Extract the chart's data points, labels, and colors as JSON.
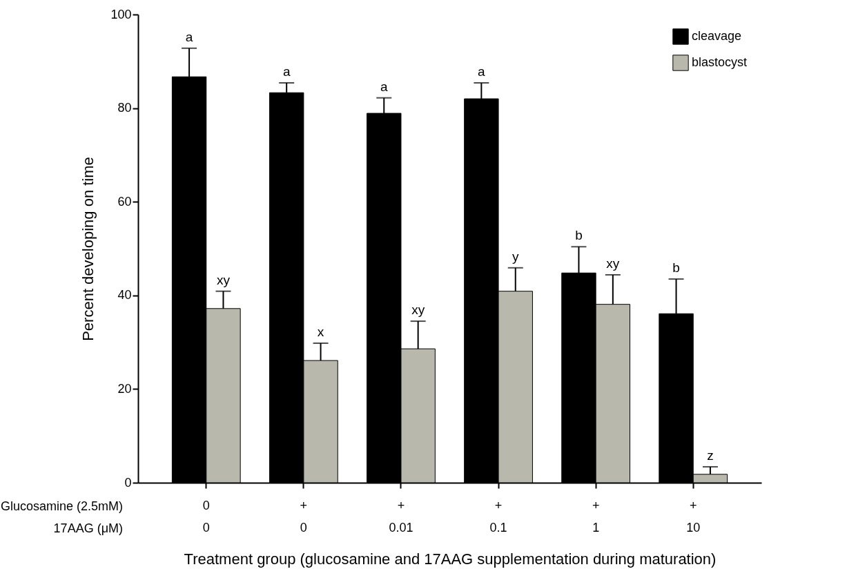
{
  "chart_data": {
    "type": "bar",
    "ylabel": "Percent developing on time",
    "xlabel": "Treatment group (glucosamine and 17AAG supplementation during maturation)",
    "categories": [
      "0\n0",
      "+\n0",
      "+\n0.01",
      "+\n0.1",
      "+\n1",
      "+\n10"
    ],
    "annotations": [
      "Glucosamine (2.5mM)",
      "17AAG (μM)"
    ],
    "ylim": [
      0,
      100
    ],
    "yticks": [
      0,
      20,
      40,
      60,
      80,
      100
    ],
    "grid": false,
    "legend": "top right",
    "series": [
      {
        "name": "cleavage",
        "color": "#000000",
        "values": [
          86.7,
          83.3,
          78.9,
          82,
          44.8,
          36.1
        ],
        "errors": [
          [
            86.7,
            92.8
          ],
          [
            83.3,
            85.4
          ],
          [
            78.9,
            82.2
          ],
          [
            82,
            85.4
          ],
          [
            44.8,
            50.4
          ],
          [
            36.1,
            43.5
          ]
        ],
        "value_labels": [
          "a",
          "a",
          "a",
          "a",
          "b",
          "b"
        ]
      },
      {
        "name": "blastocyst",
        "color": "#b8b8ac",
        "values": [
          37.2,
          26.1,
          28.6,
          40.9,
          38.1,
          1.8
        ],
        "errors": [
          [
            37.2,
            40.9
          ],
          [
            26.1,
            29.8
          ],
          [
            28.6,
            34.5
          ],
          [
            40.9,
            45.9
          ],
          [
            38.1,
            44.4
          ],
          [
            1.8,
            3.4
          ]
        ],
        "value_labels": [
          "xy",
          "x",
          "xy",
          "y",
          "xy",
          "z"
        ]
      }
    ]
  }
}
